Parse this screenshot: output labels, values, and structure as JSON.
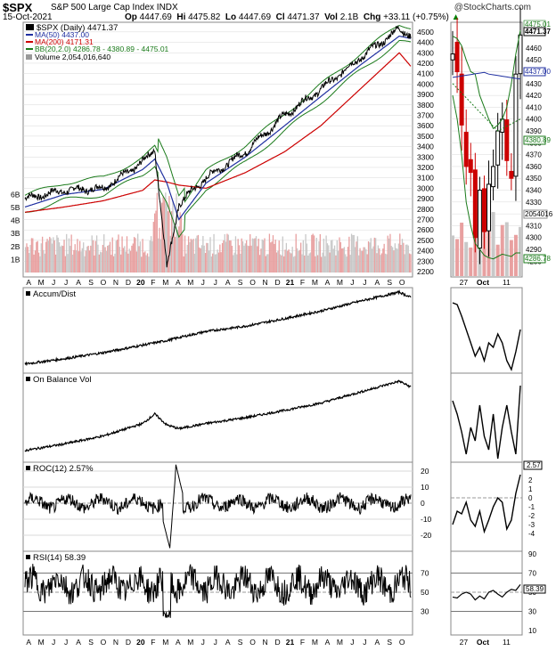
{
  "header": {
    "symbol": "$SPX",
    "description": "S&P 500 Large Cap Index INDX",
    "watermark": "@StockCharts.com",
    "date": "15-Oct-2021",
    "open_label": "Op",
    "open": "4447.69",
    "high_label": "Hi",
    "high": "4475.82",
    "low_label": "Lo",
    "low": "4447.69",
    "close_label": "Cl",
    "close": "4471.37",
    "vol_label": "Vol",
    "vol": "2.1B",
    "chg_label": "Chg",
    "chg": "+33.11 (+0.75%)",
    "chg_arrow": "▲"
  },
  "legend": {
    "price": "$SPX (Daily) 4471.37",
    "ma50": "MA(50) 4437.00",
    "ma200": "MA(200) 4171.31",
    "bb": "BB(20,2.0) 4286.78 - 4380.89 - 4475.01",
    "volume": "Volume 2,054,016,640"
  },
  "panels": {
    "accum": "Accum/Dist",
    "obv": "On Balance Vol",
    "roc": "ROC(12) 2.57%",
    "rsi": "RSI(14) 58.39"
  },
  "price_axis": [
    "4500",
    "4400",
    "4300",
    "4200",
    "4100",
    "4000",
    "3900",
    "3800",
    "3700",
    "3600",
    "3500",
    "3400",
    "3300",
    "3200",
    "3100",
    "3000",
    "2900",
    "2800",
    "2700",
    "2600",
    "2500",
    "2400",
    "2300",
    "2200"
  ],
  "volume_axis": [
    "6B",
    "5B",
    "4B",
    "3B",
    "2B",
    "1B"
  ],
  "zoom_axis": [
    "4460",
    "4450",
    "4440",
    "4430",
    "4420",
    "4410",
    "4400",
    "4390",
    "4380",
    "4370",
    "4360",
    "4350",
    "4340",
    "4330",
    "4320",
    "4310",
    "4300",
    "4290",
    "4280"
  ],
  "zoom_labels": {
    "ma50": "4437.00",
    "close": "4471.37",
    "bb_mid": "4380.89",
    "volume": "2054016",
    "bb_low": "4286.78",
    "bb_up": "4475.01"
  },
  "roc_axis": [
    "20",
    "10",
    "0",
    "-10",
    "-20"
  ],
  "roc_zoom_axis": [
    "2",
    "1",
    "0",
    "-1",
    "-2",
    "-3",
    "-4"
  ],
  "roc_zoom_value": "2.57",
  "rsi_axis": [
    "70",
    "50",
    "30"
  ],
  "rsi_zoom_axis": [
    "90",
    "70",
    "50",
    "30",
    "10"
  ],
  "rsi_zoom_value": "58.39",
  "month_labels": [
    "A",
    "M",
    "J",
    "J",
    "A",
    "S",
    "O",
    "N",
    "D",
    "20",
    "F",
    "M",
    "A",
    "M",
    "J",
    "J",
    "A",
    "S",
    "O",
    "N",
    "D",
    "21",
    "F",
    "M",
    "A",
    "M",
    "J",
    "J",
    "A",
    "S",
    "O"
  ],
  "zoom_month_labels": [
    "27",
    "Oct",
    "11"
  ],
  "colors": {
    "price": "#000000",
    "ma50": "#1f2fa0",
    "ma200": "#cc0000",
    "bb": "#1a7a1a",
    "volume_up": "#e8a0a0",
    "volume_down": "#c8c8c8",
    "candle_down": "#cc0000",
    "grid": "#d8d8d8"
  },
  "chart_data": [
    {
      "type": "line",
      "title": "$SPX S&P 500 Large Cap Index",
      "x": [
        "2019-04",
        "2019-07",
        "2019-10",
        "2020-01",
        "2020-02",
        "2020-03",
        "2020-04",
        "2020-06",
        "2020-09",
        "2020-12",
        "2021-03",
        "2021-06",
        "2021-09",
        "2021-10"
      ],
      "series": [
        {
          "name": "$SPX (Daily)",
          "values": [
            2900,
            2980,
            3000,
            3250,
            3380,
            2240,
            2850,
            3100,
            3350,
            3700,
            3950,
            4250,
            4530,
            4471
          ]
        },
        {
          "name": "MA(50)",
          "values": [
            2820,
            2940,
            2990,
            3180,
            3280,
            3050,
            2700,
            3050,
            3300,
            3600,
            3880,
            4180,
            4460,
            4437
          ]
        },
        {
          "name": "MA(200)",
          "values": [
            2770,
            2820,
            2880,
            2980,
            3080,
            3060,
            3030,
            3000,
            3150,
            3350,
            3600,
            3950,
            4300,
            4171
          ]
        }
      ],
      "ylim": [
        2200,
        4550
      ]
    },
    {
      "type": "line",
      "title": "Accum/Dist",
      "x": [
        "2019-04",
        "2019-10",
        "2020-04",
        "2020-10",
        "2021-04",
        "2021-09",
        "2021-10"
      ],
      "values": [
        5,
        20,
        38,
        55,
        75,
        100,
        93
      ]
    },
    {
      "type": "line",
      "title": "On Balance Vol",
      "x": [
        "2019-04",
        "2019-10",
        "2020-02",
        "2020-04",
        "2020-10",
        "2021-04",
        "2021-09",
        "2021-10"
      ],
      "values": [
        5,
        25,
        55,
        35,
        50,
        70,
        100,
        92
      ]
    },
    {
      "type": "line",
      "title": "ROC(12)",
      "x": [
        "2019-04",
        "2019-10",
        "2020-02",
        "2020-03",
        "2020-04",
        "2020-06",
        "2020-10",
        "2021-04",
        "2021-10"
      ],
      "values": [
        2,
        1,
        0,
        -28,
        24,
        3,
        -5,
        2,
        2.57
      ],
      "ylim": [
        -25,
        25
      ]
    },
    {
      "type": "line",
      "title": "RSI(14)",
      "x": [
        "2019-04",
        "2019-10",
        "2020-02",
        "2020-03",
        "2020-04",
        "2020-09",
        "2021-04",
        "2021-10"
      ],
      "values": [
        60,
        65,
        55,
        22,
        70,
        80,
        60,
        58.39
      ],
      "ylim": [
        10,
        90
      ]
    }
  ]
}
